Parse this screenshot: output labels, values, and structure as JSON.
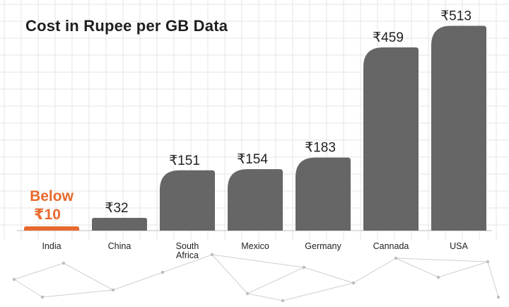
{
  "colors": {
    "bar": "#666666",
    "highlight": "#e8692d",
    "grid": "#e6e6e6",
    "text": "#222222",
    "network": "#cfcfcf"
  },
  "chart_data": {
    "type": "bar",
    "title": "Cost in Rupee per GB Data",
    "xlabel": "",
    "ylabel": "",
    "ylim": [
      0,
      560
    ],
    "grid": true,
    "legend": "none",
    "categories": [
      "India",
      "China",
      "South Africa",
      "Mexico",
      "Germany",
      "Cannada",
      "USA"
    ],
    "values": [
      10,
      32,
      151,
      154,
      183,
      459,
      513
    ],
    "value_labels": [
      "Below ₹10",
      "₹32",
      "₹151",
      "₹154",
      "₹183",
      "₹459",
      "₹513"
    ],
    "highlight_category": "India"
  }
}
